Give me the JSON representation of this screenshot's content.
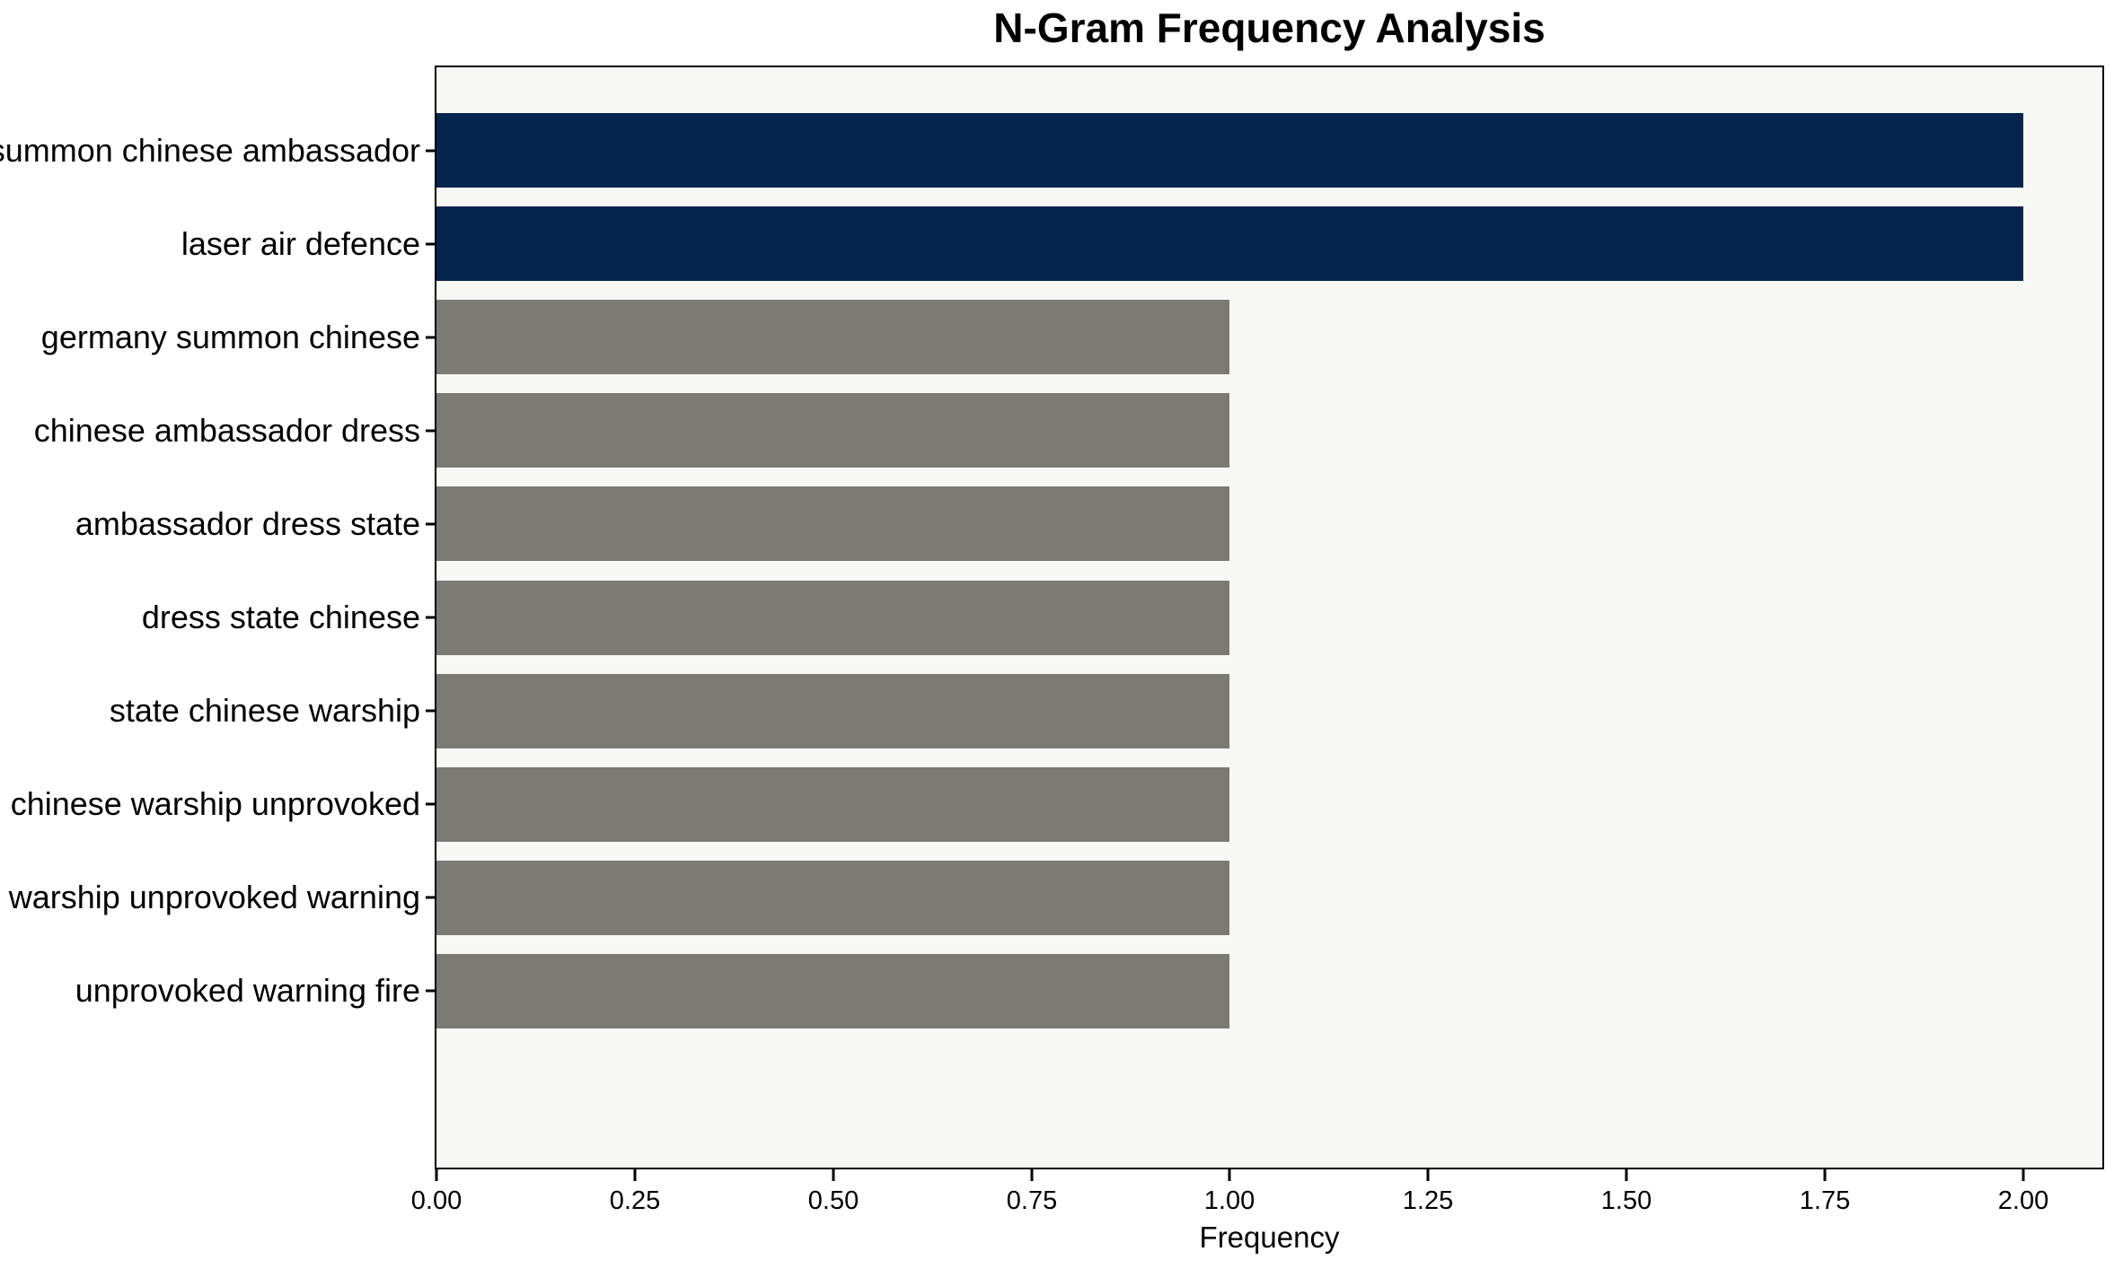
{
  "chart_data": {
    "type": "bar",
    "orientation": "horizontal",
    "title": "N-Gram Frequency Analysis",
    "xlabel": "Frequency",
    "ylabel": "",
    "categories": [
      "summon chinese ambassador",
      "laser air defence",
      "germany summon chinese",
      "chinese ambassador dress",
      "ambassador dress state",
      "dress state chinese",
      "state chinese warship",
      "chinese warship unprovoked",
      "warship unprovoked warning",
      "unprovoked warning fire"
    ],
    "values": [
      2,
      2,
      1,
      1,
      1,
      1,
      1,
      1,
      1,
      1
    ],
    "bar_colors": [
      "#03254e",
      "#03254e",
      "#7b7a75",
      "#7b7a75",
      "#7b7a75",
      "#7b7a75",
      "#7b7a75",
      "#7b7a75",
      "#7b7a75",
      "#7b7a75"
    ],
    "xlim": [
      0,
      2.1
    ],
    "xticks": [
      0,
      0.25,
      0.5,
      0.75,
      1.0,
      1.25,
      1.5,
      1.75,
      2.0
    ],
    "xtick_labels": [
      "0.00",
      "0.25",
      "0.50",
      "0.75",
      "1.00",
      "1.25",
      "1.50",
      "1.75",
      "2.00"
    ],
    "grid": false,
    "legend": null,
    "colors": {
      "highlight": "#03254e",
      "default_bar": "#7b7a75",
      "plot_background": "#f7f7f6",
      "figure_background": "#ffffff",
      "spine": "#000000",
      "text": "#000000"
    }
  }
}
